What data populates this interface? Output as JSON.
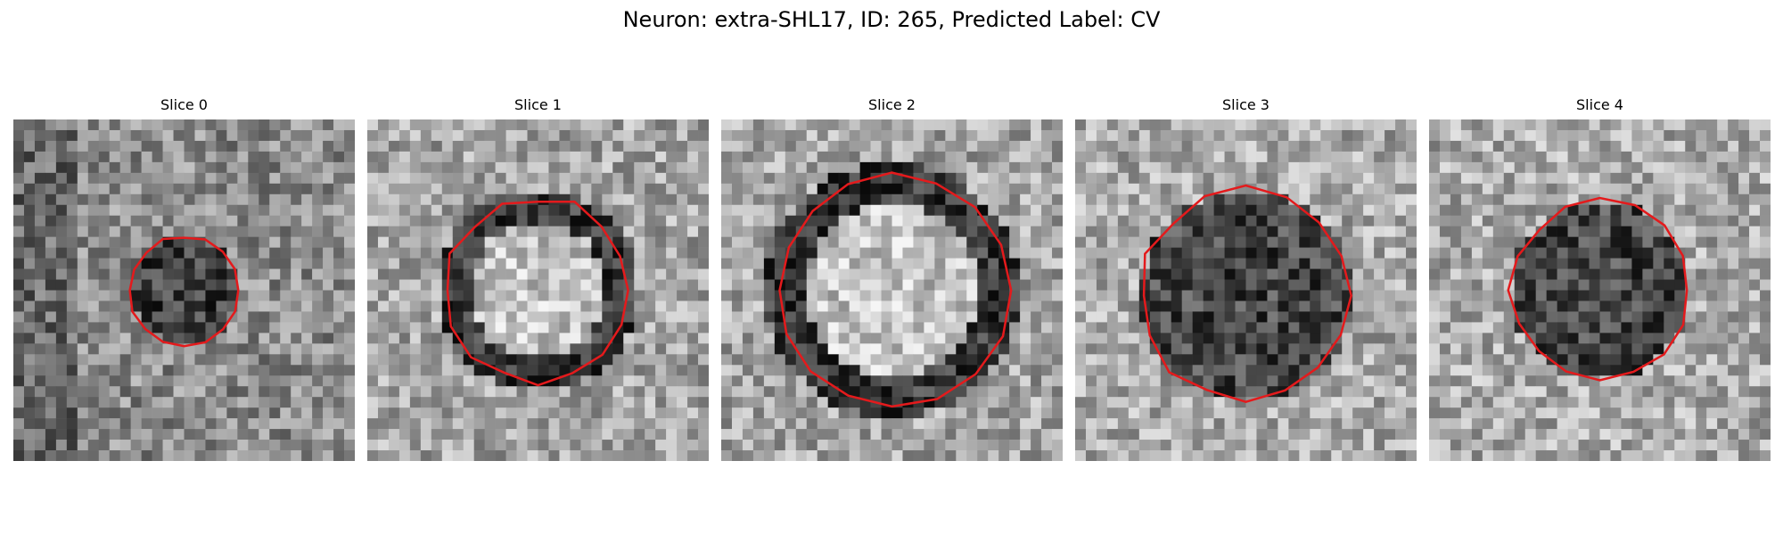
{
  "figure": {
    "title": "Neuron: extra-SHL17, ID: 265, Predicted Label: CV"
  },
  "colors": {
    "contour": "#e41a1c",
    "background": "#ffffff"
  },
  "panels": [
    {
      "title": "Slice 0",
      "seed": 11,
      "pattern": "small-dark-blob",
      "contour_radius": 0.16
    },
    {
      "title": "Slice 1",
      "seed": 23,
      "pattern": "dark-ring-bright-core",
      "contour_radius": 0.27
    },
    {
      "title": "Slice 2",
      "seed": 37,
      "pattern": "dark-ring-bright-core",
      "contour_radius": 0.34
    },
    {
      "title": "Slice 3",
      "seed": 41,
      "pattern": "dark-disc",
      "contour_radius": 0.31
    },
    {
      "title": "Slice 4",
      "seed": 53,
      "pattern": "dark-disc",
      "contour_radius": 0.26
    }
  ]
}
